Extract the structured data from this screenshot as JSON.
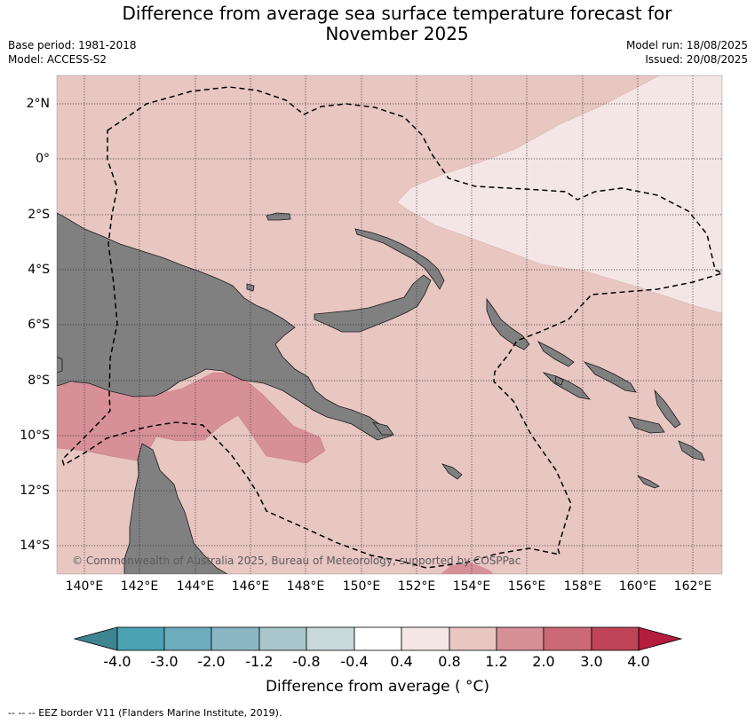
{
  "title_line1": "Difference from average sea surface temperature forecast for",
  "title_line2": "November 2025",
  "meta_left": [
    "Base period: 1981-2018",
    "Model: ACCESS-S2"
  ],
  "meta_right": [
    "Model run: 18/08/2025",
    "Issued: 20/08/2025"
  ],
  "copyright": "© Commonwealth of Australia 2025, Bureau of Meteorology, supported by COSPPac",
  "latitude_labels": [
    "2°N",
    "0°",
    "2°S",
    "4°S",
    "6°S",
    "8°S",
    "10°S",
    "12°S",
    "14°S"
  ],
  "longitude_labels": [
    "140°E",
    "142°E",
    "144°E",
    "146°E",
    "148°E",
    "150°E",
    "152°E",
    "154°E",
    "156°E",
    "158°E",
    "160°E",
    "162°E"
  ],
  "colorbar": {
    "ticks": [
      "-4.0",
      "-3.0",
      "-2.0",
      "-1.2",
      "-0.8",
      "-0.4",
      "0.4",
      "0.8",
      "1.2",
      "2.0",
      "3.0",
      "4.0"
    ],
    "colors": {
      "below_min": "#3e8592",
      "bins": [
        "#4aa2b3",
        "#6cacbd",
        "#8ab7c3",
        "#a8c6cb",
        "#c9d8db",
        "#ffffff",
        "#f4e6e4",
        "#e8c6c2",
        "#d78f98",
        "#cb6a74",
        "#bf4457"
      ],
      "above_max": "#b41d3d"
    },
    "title": "Difference from average ( °C)"
  },
  "footnote": "--  --  -- EEZ border V11 (Flanders Marine Institute, 2019).",
  "colors": {
    "land": "#808080",
    "anomaly_0_4_to_0_8": "#f4e6e4",
    "anomaly_0_8_to_1_2": "#e8c6c2",
    "anomaly_1_2_to_2_0": "#d78f98",
    "anomaly_2_0_to_3_0": "#cb6a74"
  }
}
